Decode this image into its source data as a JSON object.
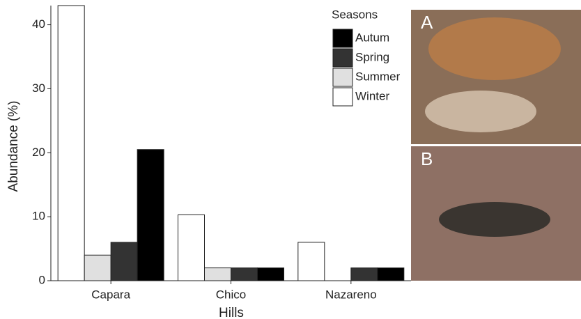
{
  "chart_data": {
    "type": "bar",
    "x_label": "Hills",
    "y_label": "Abundance (%)",
    "legend_title": "Seasons",
    "categories": [
      "Capara",
      "Chico",
      "Nazareno"
    ],
    "series": [
      {
        "name": "Autum",
        "color": "#000000",
        "values": [
          20.5,
          2,
          2
        ]
      },
      {
        "name": "Spring",
        "color": "#333333",
        "values": [
          6,
          2,
          2
        ]
      },
      {
        "name": "Summer",
        "color": "#e0e0e0",
        "values": [
          4,
          2,
          null
        ]
      },
      {
        "name": "Winter",
        "color": "#ffffff",
        "values": [
          43,
          10.3,
          6
        ]
      }
    ],
    "ylim": [
      0,
      43
    ],
    "yticks": [
      0,
      10,
      20,
      30,
      40
    ],
    "legend": "top-right"
  },
  "photo_panels": [
    {
      "label": "A"
    },
    {
      "label": "B"
    }
  ]
}
